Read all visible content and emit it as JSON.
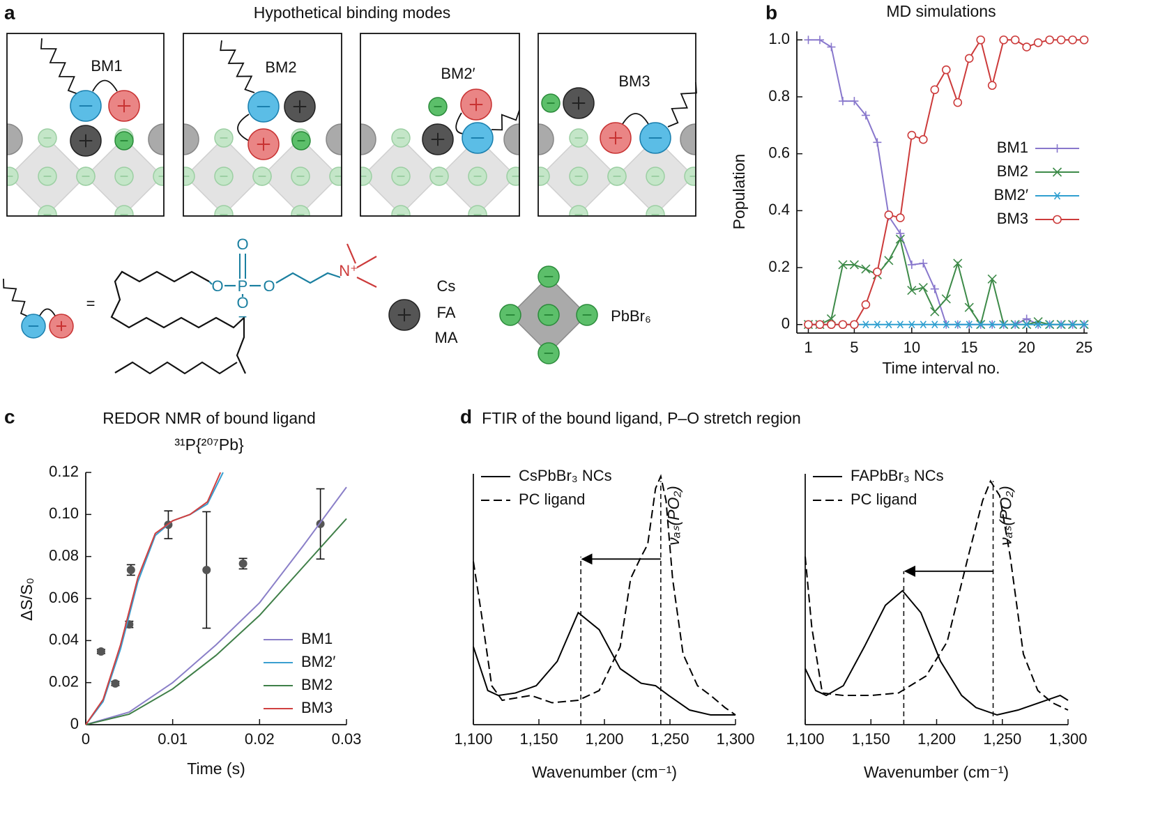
{
  "panel_labels": [
    "a",
    "b",
    "c",
    "d"
  ],
  "panel_a": {
    "title": "Hypothetical binding modes",
    "modes": [
      "BM1",
      "BM2",
      "BM2′",
      "BM3"
    ],
    "equals": "=",
    "atoms": [
      "O",
      "P",
      "O",
      "O",
      "O",
      "N⁺",
      "−"
    ],
    "cations": [
      "Cs",
      "FA",
      "MA"
    ],
    "octahedron": "PbBr₆"
  },
  "chart_data": [
    {
      "type": "line",
      "title": "MD simulations",
      "xlabel": "Time interval no.",
      "ylabel": "Population",
      "x": [
        1,
        2,
        3,
        4,
        5,
        6,
        7,
        8,
        9,
        10,
        11,
        12,
        13,
        14,
        15,
        16,
        17,
        18,
        19,
        20,
        21,
        22,
        23,
        24,
        25
      ],
      "xlim": [
        0,
        25.3
      ],
      "ylim": [
        -0.03,
        1.03
      ],
      "xticks": [
        1,
        5,
        10,
        15,
        20,
        25
      ],
      "yticks": [
        0,
        0.2,
        0.4,
        0.6,
        0.8,
        {
          "value": 1,
          "label": "1.0"
        }
      ],
      "legend": "center right",
      "series": [
        {
          "name": "BM1",
          "color": "#8877cc",
          "marker": "plus",
          "values": [
            1,
            1,
            0.975,
            0.785,
            0.785,
            0.735,
            0.64,
            0.38,
            0.32,
            0.21,
            0.215,
            0.125,
            0,
            0,
            0,
            0,
            0,
            0,
            0,
            0.02,
            0,
            0,
            0,
            0,
            0
          ]
        },
        {
          "name": "BM2",
          "color": "#3d8a48",
          "marker": "cross",
          "values": [
            0,
            0,
            0.02,
            0.21,
            0.21,
            0.195,
            0.175,
            0.225,
            0.3,
            0.12,
            0.13,
            0.045,
            0.09,
            0.215,
            0.06,
            0,
            0.16,
            0,
            0,
            0,
            0.01,
            0,
            0,
            0,
            0
          ]
        },
        {
          "name": "BM2′",
          "color": "#2f9fd0",
          "marker": "star",
          "values": [
            0,
            0,
            0,
            0,
            0,
            0,
            0,
            0,
            0,
            0,
            0,
            0,
            0,
            0,
            0,
            0,
            0,
            0,
            0,
            0,
            0,
            0,
            0,
            0,
            0
          ]
        },
        {
          "name": "BM3",
          "color": "#cc3a3a",
          "marker": "circle",
          "values": [
            0,
            0,
            0,
            0,
            0,
            0.07,
            0.185,
            0.385,
            0.375,
            0.665,
            0.65,
            0.825,
            0.895,
            0.78,
            0.935,
            1,
            0.84,
            1,
            1,
            0.975,
            0.99,
            1,
            1,
            1,
            1
          ]
        }
      ]
    },
    {
      "type": "line",
      "title": "REDOR NMR of bound ligand",
      "subtitle": "³¹P{²⁰⁷Pb}",
      "xlabel": "Time (s)",
      "ylabel": "ΔS/S₀",
      "xlim": [
        0,
        0.03
      ],
      "ylim": [
        0,
        0.12
      ],
      "xticks": [
        0,
        0.01,
        0.02,
        0.03
      ],
      "yticks": [
        0,
        0.02,
        0.04,
        0.06,
        0.08,
        {
          "value": 0.1,
          "label": "0.10"
        },
        0.12
      ],
      "legend": "lower right",
      "points": {
        "color": "#555555",
        "x": [
          0.00176,
          0.0034,
          0.005,
          0.0052,
          0.0095,
          0.0139,
          0.0181,
          0.027
        ],
        "values": [
          0.0348,
          0.0196,
          0.0477,
          0.0736,
          0.0951,
          0.0736,
          0.0766,
          0.0955
        ],
        "errors": [
          0.001,
          0.001,
          0.0015,
          0.0025,
          0.0066,
          0.0277,
          0.0025,
          0.0167
        ]
      },
      "series": [
        {
          "name": "BM1",
          "color": "#8a7fc8",
          "x": [
            0,
            0.005,
            0.01,
            0.015,
            0.02,
            0.025,
            0.03
          ],
          "values": [
            0,
            0.006,
            0.02,
            0.038,
            0.058,
            0.085,
            0.113
          ]
        },
        {
          "name": "BM2′",
          "color": "#3a9fd0",
          "x": [
            0,
            0.002,
            0.004,
            0.006,
            0.008,
            0.01,
            0.012,
            0.014,
            0.0158
          ],
          "values": [
            0,
            0.011,
            0.036,
            0.068,
            0.09,
            0.097,
            0.1,
            0.105,
            0.12
          ]
        },
        {
          "name": "BM2",
          "color": "#3f7f48",
          "x": [
            0,
            0.005,
            0.01,
            0.015,
            0.02,
            0.025,
            0.03
          ],
          "values": [
            0,
            0.005,
            0.017,
            0.033,
            0.052,
            0.075,
            0.098
          ]
        },
        {
          "name": "BM3",
          "color": "#d04040",
          "x": [
            0,
            0.002,
            0.004,
            0.006,
            0.008,
            0.01,
            0.012,
            0.014,
            0.0155
          ],
          "values": [
            0,
            0.012,
            0.038,
            0.07,
            0.091,
            0.097,
            0.1,
            0.106,
            0.12
          ]
        }
      ]
    },
    {
      "type": "line",
      "title": "FTIR of the bound ligand, P–O stretch region",
      "xlabel": "Wavenumber (cm⁻¹)",
      "xlim": [
        1100,
        1300
      ],
      "ylim": [
        -0.03,
        1
      ],
      "xticks": [
        {
          "value": 1100,
          "label": "1,100"
        },
        {
          "value": 1150,
          "label": "1,150"
        },
        {
          "value": 1200,
          "label": "1,200"
        },
        {
          "value": 1250,
          "label": "1,250"
        },
        {
          "value": 1300,
          "label": "1,300"
        }
      ],
      "legend": "upper left",
      "annotation": "νₐₛ(PO₂)",
      "vlines": [
        {
          "x": 1182,
          "top": 0.66
        },
        {
          "x": 1243,
          "top": 0.97
        }
      ],
      "arrow_y": 0.65,
      "series": [
        {
          "name": "CsPbBr₃ NCs",
          "color": "#000000",
          "x": [
            1100,
            1111,
            1119,
            1132,
            1148,
            1164,
            1180,
            1196,
            1212,
            1228,
            1239,
            1249,
            1265,
            1281,
            1300
          ],
          "values": [
            0.29,
            0.11,
            0.09,
            0.1,
            0.13,
            0.23,
            0.43,
            0.36,
            0.2,
            0.14,
            0.13,
            0.09,
            0.03,
            0.01,
            0.01
          ]
        },
        {
          "name": "PC ligand",
          "color": "#000000",
          "dash": true,
          "x": [
            1100,
            1106,
            1114,
            1122,
            1144,
            1160,
            1180,
            1196,
            1212,
            1220,
            1228,
            1233,
            1239,
            1243,
            1247,
            1252,
            1260,
            1271,
            1281,
            1292,
            1300
          ],
          "values": [
            0.64,
            0.43,
            0.13,
            0.07,
            0.09,
            0.06,
            0.07,
            0.11,
            0.29,
            0.57,
            0.66,
            0.71,
            0.94,
            0.99,
            0.89,
            0.57,
            0.26,
            0.13,
            0.09,
            0.04,
            0.01
          ]
        }
      ]
    },
    {
      "type": "line",
      "xlabel": "Wavenumber (cm⁻¹)",
      "xlim": [
        1100,
        1300
      ],
      "ylim": [
        -0.03,
        1
      ],
      "xticks": [
        {
          "value": 1100,
          "label": "1,100"
        },
        {
          "value": 1150,
          "label": "1,150"
        },
        {
          "value": 1200,
          "label": "1,200"
        },
        {
          "value": 1250,
          "label": "1,250"
        },
        {
          "value": 1300,
          "label": "1,300"
        }
      ],
      "legend": "upper left",
      "annotation": "νₐₛ(PO₂)",
      "vlines": [
        {
          "x": 1175,
          "top": 0.6
        },
        {
          "x": 1243,
          "top": 0.97
        }
      ],
      "arrow_y": 0.6,
      "series": [
        {
          "name": "FAPbBr₃ NCs",
          "color": "#000000",
          "x": [
            1100,
            1108,
            1116,
            1129,
            1145,
            1161,
            1174,
            1188,
            1203,
            1219,
            1230,
            1246,
            1262,
            1278,
            1294,
            1300
          ],
          "values": [
            0.2,
            0.11,
            0.09,
            0.13,
            0.29,
            0.46,
            0.52,
            0.43,
            0.23,
            0.09,
            0.04,
            0.01,
            0.03,
            0.06,
            0.09,
            0.07
          ]
        },
        {
          "name": "PC ligand",
          "color": "#000000",
          "dash": true,
          "x": [
            1100,
            1105,
            1113,
            1129,
            1150,
            1171,
            1192,
            1208,
            1224,
            1235,
            1241,
            1248,
            1256,
            1266,
            1277,
            1288,
            1300
          ],
          "values": [
            0.66,
            0.37,
            0.1,
            0.09,
            0.09,
            0.1,
            0.17,
            0.31,
            0.66,
            0.89,
            0.97,
            0.91,
            0.66,
            0.26,
            0.11,
            0.06,
            0.03
          ]
        }
      ]
    }
  ]
}
